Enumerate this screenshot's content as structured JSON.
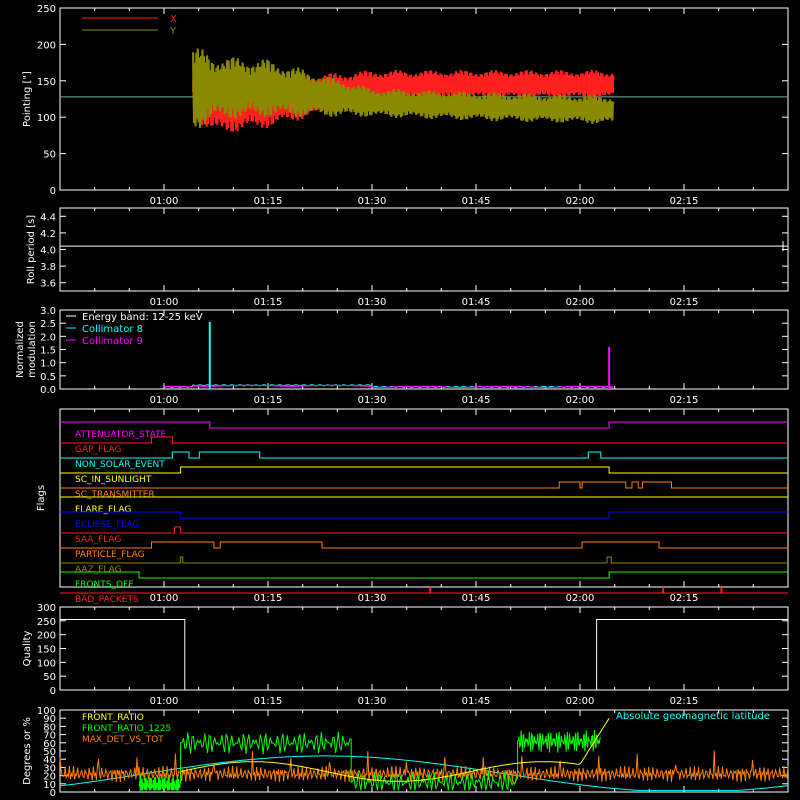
{
  "chart_data": [
    {
      "type": "line",
      "ylabel": "Pointing [\"]",
      "yticks": [
        "0",
        "50",
        "100",
        "150",
        "200",
        "250"
      ],
      "ylim": [
        0,
        250
      ],
      "xticks": [
        "01:00",
        "01:15",
        "01:30",
        "01:45",
        "02:00",
        "02:15"
      ],
      "xlim_hours": [
        0.75,
        2.5
      ],
      "reference_line": 128,
      "series": [
        {
          "name": "X",
          "color": "#ff2020",
          "envelope": [
            [
              1.07,
              100,
              170
            ],
            [
              1.12,
              75,
              165
            ],
            [
              1.25,
              85,
              155
            ],
            [
              1.5,
              120,
              165
            ],
            [
              1.75,
              125,
              165
            ],
            [
              2.08,
              125,
              165
            ]
          ]
        },
        {
          "name": "Y",
          "color": "#8a8a00",
          "envelope": [
            [
              1.07,
              80,
              200
            ],
            [
              1.12,
              95,
              185
            ],
            [
              1.25,
              100,
              180
            ],
            [
              1.5,
              100,
              140
            ],
            [
              1.75,
              95,
              135
            ],
            [
              2.08,
              90,
              130
            ]
          ]
        }
      ],
      "legend": "top-left"
    },
    {
      "type": "line",
      "ylabel": "Roll period [s]",
      "yticks": [
        "3.6",
        "3.8",
        "4.0",
        "4.2",
        "4.4"
      ],
      "ylim": [
        3.5,
        4.5
      ],
      "xticks": [
        "01:00",
        "01:15",
        "01:30",
        "01:45",
        "02:00",
        "02:15"
      ],
      "series": [
        {
          "name": "",
          "color": "#ffffff",
          "value": 4.04
        }
      ]
    },
    {
      "type": "line",
      "ylabel": "Normalized modulation",
      "ylabel_lines": [
        "Normalized",
        "modulation"
      ],
      "yticks": [
        "0.0",
        "0.5",
        "1.0",
        "1.5",
        "2.0",
        "2.5",
        "3.0"
      ],
      "ylim": [
        0,
        3
      ],
      "xticks": [
        "01:00",
        "01:15",
        "01:30",
        "01:45",
        "02:00",
        "02:15"
      ],
      "legend_items": [
        {
          "text": "Energy band: 12-25 keV",
          "color": "#ffffff"
        },
        {
          "text": "Collimator 8",
          "color": "#00ffff"
        },
        {
          "text": "Collimator 9",
          "color": "#ff00ff"
        }
      ],
      "spikes": [
        {
          "x_hour": 1.11,
          "value": 2.55,
          "color": "#00ffff"
        },
        {
          "x_hour": 2.07,
          "value": 1.6,
          "color": "#ff00ff"
        }
      ]
    },
    {
      "type": "table",
      "ylabel": "Flags",
      "xticks": [
        "01:00",
        "01:15",
        "01:30",
        "01:45",
        "02:00",
        "02:15"
      ],
      "flags": [
        {
          "name": "ATTENUATOR_STATE",
          "color": "#ff00ff",
          "segments": [
            [
              0.75,
              1.11,
              1
            ],
            [
              1.11,
              2.07,
              0
            ],
            [
              2.07,
              2.5,
              1
            ]
          ]
        },
        {
          "name": "GAP_FLAG",
          "color": "#ff2020",
          "segments": [
            [
              0.75,
              0.97,
              0
            ],
            [
              0.97,
              1.02,
              1
            ],
            [
              1.02,
              2.5,
              0
            ]
          ]
        },
        {
          "name": "NON_SOLAR_EVENT",
          "color": "#00ffff",
          "segments": [
            [
              0.75,
              1.02,
              0
            ],
            [
              1.02,
              1.06,
              1
            ],
            [
              1.06,
              1.085,
              0
            ],
            [
              1.085,
              1.23,
              1
            ],
            [
              1.23,
              2.02,
              0
            ],
            [
              2.02,
              2.05,
              1
            ],
            [
              2.05,
              2.5,
              0
            ]
          ]
        },
        {
          "name": "SC_IN_SUNLIGHT",
          "color": "#ffff00",
          "segments": [
            [
              0.75,
              1.04,
              0
            ],
            [
              1.04,
              2.07,
              1
            ],
            [
              2.07,
              2.5,
              0
            ]
          ]
        },
        {
          "name": "SC_TRANSMITTER",
          "color": "#ff8000",
          "segments": [
            [
              0.75,
              1.95,
              0
            ],
            [
              1.95,
              2.0,
              1
            ],
            [
              2.0,
              2.005,
              0
            ],
            [
              2.005,
              2.11,
              1
            ],
            [
              2.11,
              2.125,
              0
            ],
            [
              2.125,
              2.14,
              1
            ],
            [
              2.14,
              2.15,
              0
            ],
            [
              2.15,
              2.22,
              1
            ],
            [
              2.22,
              2.5,
              0
            ]
          ]
        },
        {
          "name": "FLARE_FLAG",
          "color": "#ffff00",
          "segments": [
            [
              0.75,
              2.5,
              1
            ]
          ]
        },
        {
          "name": "ECLIPSE_FLAG",
          "color": "#0000ff",
          "segments": [
            [
              0.75,
              1.04,
              1
            ],
            [
              1.04,
              2.07,
              0
            ],
            [
              2.07,
              2.5,
              1
            ]
          ]
        },
        {
          "name": "SAA_FLAG",
          "color": "#ff2020",
          "segments": [
            [
              0.75,
              1.025,
              0
            ],
            [
              1.025,
              1.04,
              1
            ],
            [
              1.04,
              2.5,
              0
            ]
          ]
        },
        {
          "name": "PARTICLE_FLAG",
          "color": "#ff8000",
          "segments": [
            [
              0.75,
              0.97,
              0
            ],
            [
              0.97,
              1.12,
              1
            ],
            [
              1.12,
              1.135,
              0
            ],
            [
              1.135,
              1.38,
              1
            ],
            [
              1.38,
              2.005,
              0
            ],
            [
              2.005,
              2.19,
              1
            ],
            [
              2.19,
              2.5,
              0
            ]
          ]
        },
        {
          "name": "AAZ_FLAG",
          "color": "#8a8a00",
          "segments": [
            [
              0.75,
              1.04,
              0
            ],
            [
              1.04,
              1.045,
              1
            ],
            [
              1.045,
              2.065,
              0
            ],
            [
              2.065,
              2.075,
              1
            ],
            [
              2.075,
              2.5,
              0
            ]
          ]
        },
        {
          "name": "FRONTS_OFF",
          "color": "#00ff00",
          "segments": [
            [
              0.75,
              0.94,
              1
            ],
            [
              0.94,
              2.07,
              0
            ],
            [
              2.07,
              2.5,
              1
            ]
          ]
        },
        {
          "name": "BAD_PACKETS",
          "color": "#ff2020",
          "spikes": [
            1.64,
            2.2,
            2.34
          ]
        }
      ]
    },
    {
      "type": "line",
      "ylabel": "Quality",
      "yticks": [
        "0",
        "50",
        "100",
        "150",
        "200",
        "250",
        "300"
      ],
      "ylim": [
        0,
        300
      ],
      "xticks": [
        "01:00",
        "01:15",
        "01:30",
        "01:45",
        "02:00",
        "02:15"
      ],
      "steps": [
        [
          0.75,
          1.05,
          255
        ],
        [
          1.05,
          2.04,
          0
        ],
        [
          2.04,
          2.5,
          255
        ]
      ]
    },
    {
      "type": "line",
      "ylabel": "Degrees or %",
      "yticks": [
        "0",
        "10",
        "20",
        "30",
        "40",
        "50",
        "60",
        "70",
        "80",
        "90",
        "100"
      ],
      "ylim": [
        0,
        100
      ],
      "legend_items": [
        {
          "text": "FRONT_RATIO",
          "color": "#ffff00"
        },
        {
          "text": "FRONT_RATIO_1225",
          "color": "#00ff00"
        },
        {
          "text": "MAX_DET_VS_TOT",
          "color": "#ff8000"
        }
      ],
      "annotation": {
        "text": "Absolute geomagnetic latitude",
        "color": "#00ffff"
      }
    }
  ]
}
